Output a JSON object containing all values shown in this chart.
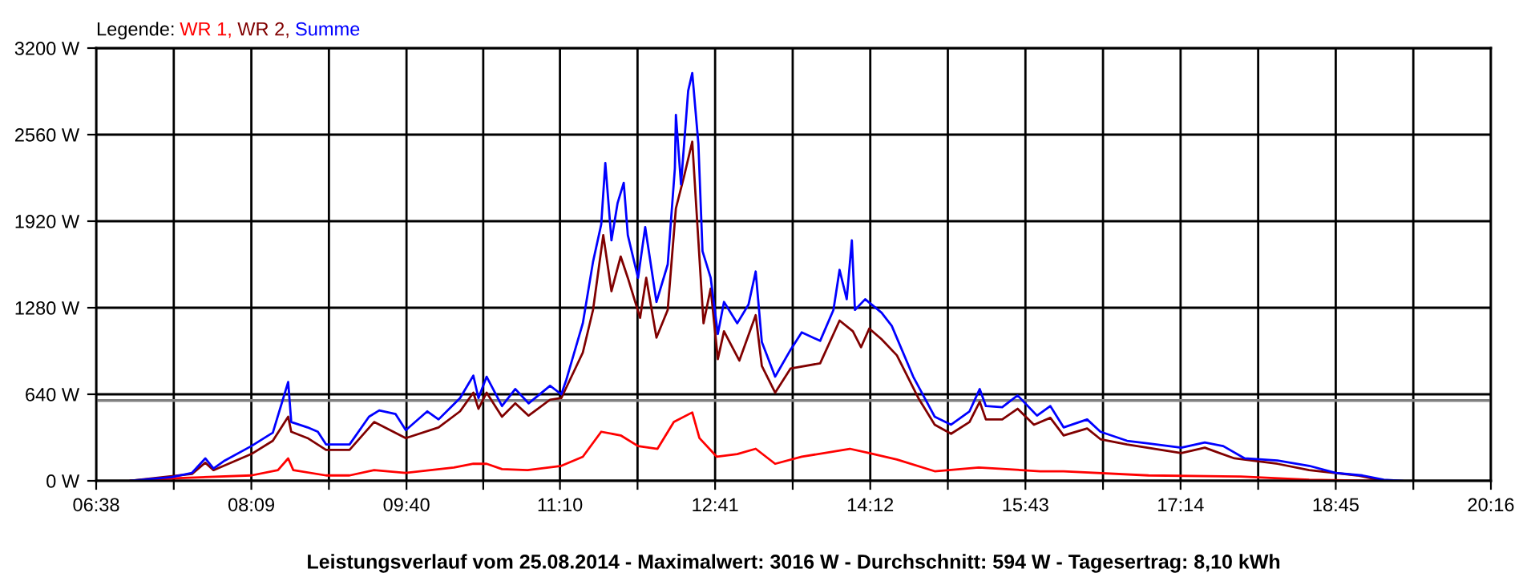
{
  "chart_data": {
    "type": "line",
    "title": "Leistungsverlauf vom 25.08.2014 - Maximalwert: 3016 W - Durchschnitt: 594 W - Tagesertrag: 8,10 kWh",
    "legend_title": "Legende:",
    "legend": "top left",
    "grid": true,
    "xlim": [
      6.6333,
      20.2667
    ],
    "xticks": [
      {
        "value": 6.6333,
        "label": "06:38"
      },
      {
        "value": 7.3917,
        "label": null
      },
      {
        "value": 8.15,
        "label": "08:09"
      },
      {
        "value": 8.9083,
        "label": null
      },
      {
        "value": 9.6667,
        "label": "09:40"
      },
      {
        "value": 10.4167,
        "label": null
      },
      {
        "value": 11.1667,
        "label": "11:10"
      },
      {
        "value": 11.925,
        "label": null
      },
      {
        "value": 12.6833,
        "label": "12:41"
      },
      {
        "value": 13.4417,
        "label": null
      },
      {
        "value": 14.2,
        "label": "14:12"
      },
      {
        "value": 14.9583,
        "label": null
      },
      {
        "value": 15.7167,
        "label": "15:43"
      },
      {
        "value": 16.475,
        "label": null
      },
      {
        "value": 17.2333,
        "label": "17:14"
      },
      {
        "value": 17.9917,
        "label": null
      },
      {
        "value": 18.75,
        "label": "18:45"
      },
      {
        "value": 19.5083,
        "label": null
      },
      {
        "value": 20.2667,
        "label": "20:16"
      }
    ],
    "ylim": [
      0,
      3200
    ],
    "yticks": [
      {
        "value": 0,
        "label": "0 W"
      },
      {
        "value": 640,
        "label": "640 W"
      },
      {
        "value": 1280,
        "label": "1280 W"
      },
      {
        "value": 1920,
        "label": "1920 W"
      },
      {
        "value": 2560,
        "label": "2560 W"
      },
      {
        "value": 3200,
        "label": "3200 W"
      }
    ],
    "ref_lines": [
      {
        "axis": "y",
        "value": 594,
        "label": null,
        "color": "#808080"
      }
    ],
    "series": [
      {
        "name": "WR 1,",
        "color": "#ff0000",
        "x": [
          6.97,
          7.44,
          8.15,
          8.41,
          8.51,
          8.56,
          8.88,
          9.11,
          9.35,
          9.66,
          10.13,
          10.32,
          10.45,
          10.6,
          10.85,
          11.18,
          11.39,
          11.57,
          11.76,
          11.93,
          12.12,
          12.28,
          12.46,
          12.53,
          12.7,
          12.9,
          13.08,
          13.27,
          13.53,
          14.0,
          14.19,
          14.46,
          14.83,
          15.26,
          15.86,
          16.09,
          16.92,
          17.82,
          18.49,
          19.17
        ],
        "values": [
          0,
          20,
          40,
          79,
          166,
          79,
          40,
          40,
          79,
          59,
          99,
          126,
          126,
          87,
          79,
          111,
          178,
          363,
          336,
          257,
          237,
          435,
          506,
          316,
          178,
          198,
          237,
          126,
          178,
          237,
          205,
          158,
          71,
          99,
          71,
          71,
          40,
          32,
          8,
          0
        ]
      },
      {
        "name": "WR 2,",
        "color": "#800000",
        "x": [
          6.97,
          7.57,
          7.7,
          7.78,
          8.15,
          8.36,
          8.51,
          8.54,
          8.7,
          8.88,
          9.11,
          9.35,
          9.66,
          9.98,
          10.19,
          10.32,
          10.37,
          10.45,
          10.6,
          10.73,
          10.86,
          11.07,
          11.18,
          11.39,
          11.49,
          11.59,
          11.67,
          11.76,
          11.83,
          11.95,
          12.01,
          12.11,
          12.22,
          12.3,
          12.38,
          12.46,
          12.5,
          12.57,
          12.64,
          12.71,
          12.77,
          12.92,
          13.08,
          13.14,
          13.27,
          13.42,
          13.71,
          13.9,
          14.03,
          14.11,
          14.19,
          14.31,
          14.46,
          14.67,
          14.83,
          14.99,
          15.17,
          15.27,
          15.33,
          15.49,
          15.64,
          15.8,
          15.96,
          16.09,
          16.32,
          16.45,
          16.71,
          17.24,
          17.47,
          17.76,
          18.18,
          18.49,
          18.96,
          19.22
        ],
        "values": [
          0,
          51,
          134,
          79,
          198,
          296,
          474,
          363,
          316,
          229,
          229,
          435,
          316,
          395,
          514,
          652,
          533,
          652,
          474,
          573,
          482,
          600,
          612,
          948,
          1264,
          1817,
          1402,
          1659,
          1501,
          1205,
          1501,
          1059,
          1264,
          2015,
          2252,
          2508,
          2015,
          1165,
          1422,
          900,
          1106,
          889,
          1225,
          849,
          652,
          830,
          869,
          1185,
          1106,
          988,
          1126,
          1047,
          928,
          612,
          415,
          348,
          435,
          585,
          454,
          454,
          533,
          415,
          466,
          336,
          387,
          308,
          269,
          205,
          245,
          166,
          126,
          79,
          40,
          0
        ]
      },
      {
        "name": "Summe",
        "color": "#0000ff",
        "x": [
          6.97,
          7.37,
          7.57,
          7.7,
          7.78,
          7.89,
          8.15,
          8.36,
          8.51,
          8.54,
          8.7,
          8.8,
          8.88,
          9.11,
          9.3,
          9.4,
          9.56,
          9.66,
          9.87,
          9.98,
          10.19,
          10.32,
          10.37,
          10.45,
          10.6,
          10.73,
          10.86,
          11.07,
          11.18,
          11.23,
          11.39,
          11.49,
          11.57,
          11.61,
          11.67,
          11.73,
          11.79,
          11.83,
          11.93,
          12.0,
          12.11,
          12.22,
          12.29,
          12.3,
          12.35,
          12.42,
          12.46,
          12.52,
          12.56,
          12.64,
          12.71,
          12.77,
          12.9,
          13.01,
          13.08,
          13.14,
          13.27,
          13.42,
          13.53,
          13.71,
          13.84,
          13.9,
          13.97,
          14.02,
          14.05,
          14.15,
          14.31,
          14.41,
          14.62,
          14.83,
          14.99,
          15.17,
          15.27,
          15.33,
          15.49,
          15.64,
          15.83,
          15.96,
          16.09,
          16.32,
          16.45,
          16.71,
          16.92,
          17.24,
          17.47,
          17.65,
          17.86,
          18.18,
          18.49,
          18.75,
          19.01,
          19.22,
          19.4
        ],
        "values": [
          0,
          28,
          59,
          166,
          91,
          150,
          257,
          356,
          731,
          435,
          395,
          363,
          269,
          269,
          474,
          521,
          494,
          375,
          514,
          454,
          612,
          778,
          612,
          770,
          553,
          679,
          573,
          703,
          640,
          750,
          1165,
          1620,
          1896,
          2350,
          1778,
          2054,
          2204,
          1817,
          1501,
          1876,
          1323,
          1600,
          2311,
          2706,
          2192,
          2884,
          3016,
          2489,
          1699,
          1501,
          1086,
          1323,
          1165,
          1304,
          1548,
          1027,
          770,
          968,
          1098,
          1035,
          1264,
          1560,
          1343,
          1778,
          1264,
          1343,
          1244,
          1146,
          770,
          474,
          415,
          514,
          679,
          553,
          545,
          632,
          482,
          553,
          395,
          454,
          363,
          296,
          277,
          245,
          284,
          257,
          166,
          150,
          111,
          59,
          40,
          8,
          0
        ]
      }
    ]
  }
}
